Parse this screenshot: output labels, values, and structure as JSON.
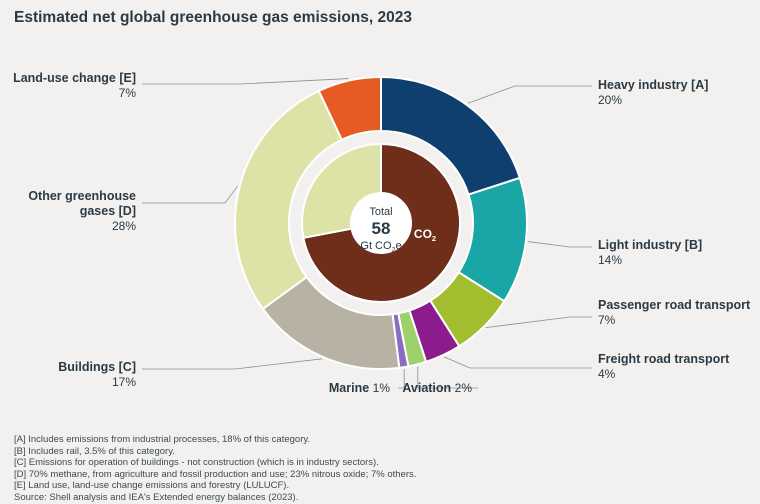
{
  "title": "Estimated net global greenhouse gas emissions, 2023",
  "chart_data": {
    "type": "pie",
    "style": "donut",
    "center": {
      "line1": "Total",
      "line2": "58",
      "line3": "Gt CO",
      "sub": "2",
      "line3_suffix": "e"
    },
    "outer_ring": [
      {
        "name": "Heavy industry [A]",
        "value_label": "20%",
        "value": 20,
        "color": "#0f3f6e"
      },
      {
        "name": "Light industry [B]",
        "value_label": "14%",
        "value": 14,
        "color": "#1aa6a6"
      },
      {
        "name": "Passenger road transport",
        "value_label": "7%",
        "value": 7,
        "color": "#a2bd2e"
      },
      {
        "name": "Freight road transport",
        "value_label": "4%",
        "value": 4,
        "color": "#8c1b8e"
      },
      {
        "name": "Aviation",
        "value_label": "2%",
        "value": 2,
        "color": "#9ed06c"
      },
      {
        "name": "Marine",
        "value_label": "1%",
        "value": 1,
        "color": "#8a6cc0"
      },
      {
        "name": "Buildings [C]",
        "value_label": "17%",
        "value": 17,
        "color": "#b7b2a3"
      },
      {
        "name": "Other greenhouse gases [D]",
        "name_lines": [
          "Other greenhouse",
          "gases [D]"
        ],
        "value_label": "28%",
        "value": 28,
        "color": "#dde3a6"
      },
      {
        "name": "Land-use change [E]",
        "value_label": "7%",
        "value": 7,
        "color": "#e65a24"
      }
    ],
    "inner_ring": [
      {
        "name": "CO",
        "sub": "2",
        "value": 72,
        "color": "#6e2e1a"
      },
      {
        "name": "",
        "value": 28,
        "color": "#dde3a6"
      }
    ]
  },
  "footnotes": [
    "[A] Includes emissions from industrial processes, 18% of this category.",
    "[B] Includes rail, 3.5% of this category.",
    "[C] Emissions for operation of buildings - not construction (which is in industry sectors).",
    "[D] 70% methane, from agriculture and fossil production and use; 23% nitrous oxide; 7% others.",
    "[E] Land use, land-use change emissions and forestry (LULUCF).",
    "Source: Shell analysis and IEA's Extended energy balances (2023)."
  ]
}
